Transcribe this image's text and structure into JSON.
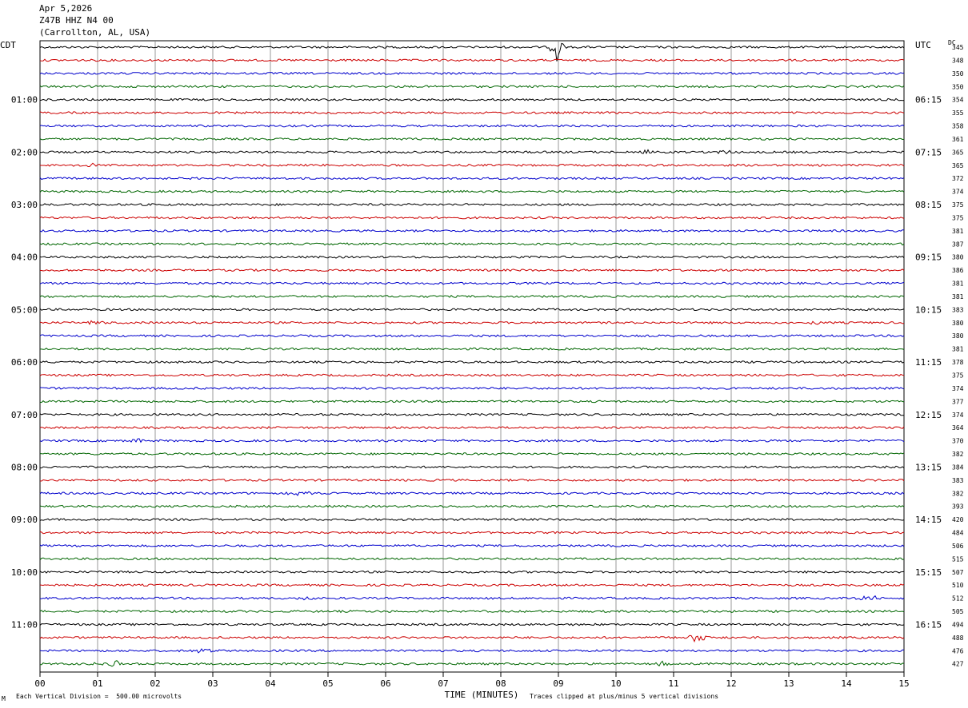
{
  "header": {
    "date": "Apr 5,2026",
    "station": "Z47B HHZ N4 00",
    "location": "(Carrollton, AL, USA)"
  },
  "left_zone_label": "CDT",
  "right_zone_label": "UTC",
  "dc_label": "DC",
  "footer": {
    "vertical_division": "Each Vertical Division =  500.00 microvolts",
    "clip_note": "Traces clipped at plus/minus 5 vertical divisions",
    "corner_mark": "M"
  },
  "colors": {
    "trace_cycle": [
      "#000000",
      "#cc0000",
      "#0000cc",
      "#006600"
    ],
    "grid": "#808080"
  },
  "chart_data": {
    "type": "line",
    "title": "Apr 5,2026",
    "xlabel": "TIME (MINUTES)",
    "ylabel": "",
    "xlim": [
      0,
      15
    ],
    "x_ticks": [
      "00",
      "01",
      "02",
      "03",
      "04",
      "05",
      "06",
      "07",
      "08",
      "09",
      "10",
      "11",
      "12",
      "13",
      "14",
      "15"
    ],
    "left_time_labels": [
      "01:00",
      "02:00",
      "03:00",
      "04:00",
      "05:00",
      "06:00",
      "07:00",
      "08:00",
      "09:00",
      "10:00",
      "11:00"
    ],
    "right_time_labels": [
      "06:15",
      "07:15",
      "08:15",
      "09:15",
      "10:15",
      "11:15",
      "12:15",
      "13:15",
      "14:15",
      "15:15",
      "16:15"
    ],
    "trace_count": 48,
    "dc_offsets": [
      345,
      348,
      350,
      350,
      354,
      355,
      358,
      361,
      365,
      365,
      372,
      374,
      375,
      375,
      381,
      387,
      380,
      386,
      381,
      381,
      383,
      380,
      380,
      381,
      378,
      375,
      374,
      377,
      374,
      364,
      370,
      382,
      384,
      383,
      382,
      393,
      420,
      484,
      506,
      515,
      507,
      510,
      512,
      505,
      494,
      488,
      476,
      427
    ],
    "events": [
      {
        "trace": 0,
        "minute": 8.98,
        "amplitude": "large"
      },
      {
        "trace": 8,
        "minute": 10.5,
        "amplitude": "small"
      },
      {
        "trace": 8,
        "minute": 11.9,
        "amplitude": "small"
      },
      {
        "trace": 9,
        "minute": 0.9,
        "amplitude": "small"
      },
      {
        "trace": 21,
        "minute": 0.95,
        "amplitude": "small"
      },
      {
        "trace": 21,
        "minute": 13.4,
        "amplitude": "small"
      },
      {
        "trace": 30,
        "minute": 1.7,
        "amplitude": "small"
      },
      {
        "trace": 34,
        "minute": 4.5,
        "amplitude": "small"
      },
      {
        "trace": 42,
        "minute": 4.6,
        "amplitude": "small"
      },
      {
        "trace": 42,
        "minute": 14.4,
        "amplitude": "small"
      },
      {
        "trace": 45,
        "minute": 11.4,
        "amplitude": "medium"
      },
      {
        "trace": 46,
        "minute": 2.8,
        "amplitude": "small"
      },
      {
        "trace": 47,
        "minute": 1.2,
        "amplitude": "medium"
      },
      {
        "trace": 47,
        "minute": 10.8,
        "amplitude": "small"
      }
    ]
  }
}
